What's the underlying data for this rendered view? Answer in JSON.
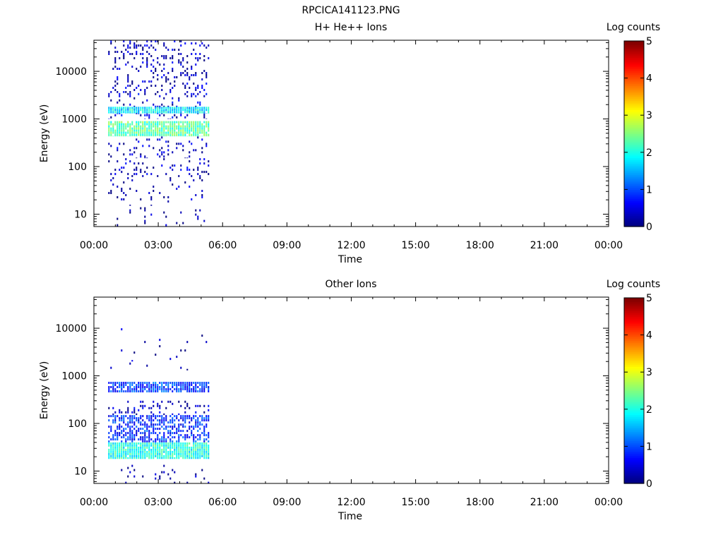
{
  "page_title": "RPCICA141123.PNG",
  "colorbar_range": [
    0,
    5
  ],
  "chart_data": [
    {
      "type": "heatmap",
      "title": "H+ He++ Ions",
      "xlabel": "Time",
      "ylabel": "Energy (eV)",
      "y_scale": "log",
      "ylim": [
        5.5,
        45000
      ],
      "xlim": [
        "00:00",
        "24:00"
      ],
      "x_tick_labels": [
        "00:00",
        "03:00",
        "06:00",
        "09:00",
        "12:00",
        "15:00",
        "18:00",
        "21:00",
        "00:00"
      ],
      "y_tick_labels": [
        "10",
        "100",
        "1000",
        "10000"
      ],
      "colorbar_label": "Log counts",
      "colorbar_ticks": [
        "0",
        "1",
        "2",
        "3",
        "4",
        "5"
      ],
      "data_interval": [
        "00:40",
        "05:20"
      ],
      "bands": [
        {
          "energy_eV": [
            3500,
            45000
          ],
          "log_counts": 0.3,
          "density": 0.18
        },
        {
          "energy_eV": [
            1000,
            3500
          ],
          "log_counts": 0.4,
          "density": 0.14
        },
        {
          "energy_eV": [
            1300,
            1800
          ],
          "log_counts": 1.8,
          "density": 0.95
        },
        {
          "energy_eV": [
            430,
            900
          ],
          "log_counts": 2.3,
          "density": 0.9
        },
        {
          "energy_eV": [
            150,
            430
          ],
          "log_counts": 0.3,
          "density": 0.14
        },
        {
          "energy_eV": [
            60,
            150
          ],
          "log_counts": 0.3,
          "density": 0.16
        },
        {
          "energy_eV": [
            15,
            60
          ],
          "log_counts": 0.2,
          "density": 0.07
        },
        {
          "energy_eV": [
            5.5,
            14
          ],
          "log_counts": 0.1,
          "density": 0.05
        }
      ]
    },
    {
      "type": "heatmap",
      "title": "Other Ions",
      "xlabel": "Time",
      "ylabel": "Energy (eV)",
      "y_scale": "log",
      "ylim": [
        5.5,
        45000
      ],
      "xlim": [
        "00:00",
        "24:00"
      ],
      "x_tick_labels": [
        "00:00",
        "03:00",
        "06:00",
        "09:00",
        "12:00",
        "15:00",
        "18:00",
        "21:00",
        "00:00"
      ],
      "y_tick_labels": [
        "10",
        "100",
        "1000",
        "10000"
      ],
      "colorbar_label": "Log counts",
      "colorbar_ticks": [
        "0",
        "1",
        "2",
        "3",
        "4",
        "5"
      ],
      "data_interval": [
        "00:40",
        "05:20"
      ],
      "bands": [
        {
          "energy_eV": [
            2000,
            10000
          ],
          "log_counts": 0.2,
          "density": 0.02
        },
        {
          "energy_eV": [
            1300,
            1900
          ],
          "log_counts": 0.3,
          "density": 0.05
        },
        {
          "energy_eV": [
            450,
            750
          ],
          "log_counts": 0.9,
          "density": 0.8
        },
        {
          "energy_eV": [
            150,
            300
          ],
          "log_counts": 0.3,
          "density": 0.15
        },
        {
          "energy_eV": [
            40,
            150
          ],
          "log_counts": 0.8,
          "density": 0.6
        },
        {
          "energy_eV": [
            18,
            40
          ],
          "log_counts": 2.0,
          "density": 0.95
        },
        {
          "energy_eV": [
            5.5,
            15
          ],
          "log_counts": 0.1,
          "density": 0.06
        }
      ]
    }
  ]
}
